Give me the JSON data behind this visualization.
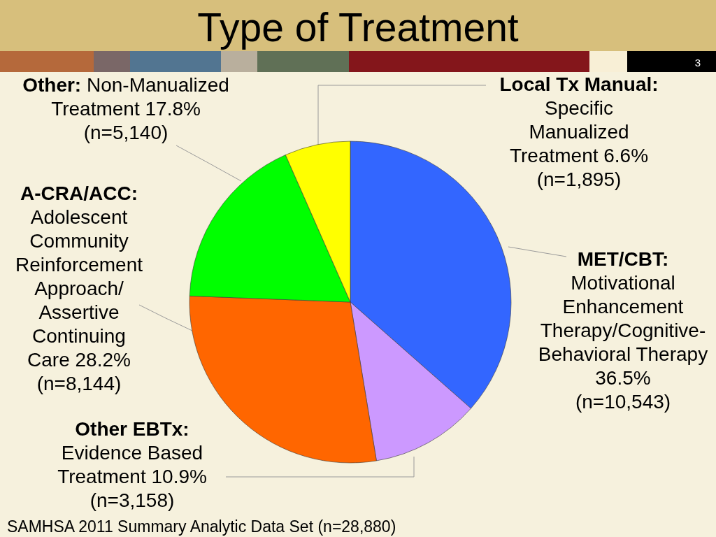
{
  "chart_data": {
    "type": "pie",
    "title": "Type of Treatment",
    "categories": [
      "MET/CBT: Motivational Enhancement Therapy/Cognitive-Behavioral Therapy",
      "Other EBTx: Evidence Based Treatment",
      "A-CRA/ACC: Adolescent Community Reinforcement Approach/Assertive Continuing Care",
      "Other: Non-Manualized Treatment",
      "Local Tx Manual: Specific Manualized Treatment"
    ],
    "values": [
      36.5,
      10.9,
      28.2,
      17.8,
      6.6
    ],
    "colors": [
      "#3366ff",
      "#cc99ff",
      "#ff6600",
      "#00ff00",
      "#ffff00"
    ],
    "value_labels": [
      "36.5%\n(n=10,543)",
      "10.9%\n(n=3,158)",
      "28.2%\n(n=8,144)",
      "17.8%\n(n=5,140)",
      "6.6%\n(n=1,895)"
    ],
    "annotations": [
      "SAMHSA 2011 Summary Analytic Data Set (n=28,880)",
      "3"
    ]
  }
}
